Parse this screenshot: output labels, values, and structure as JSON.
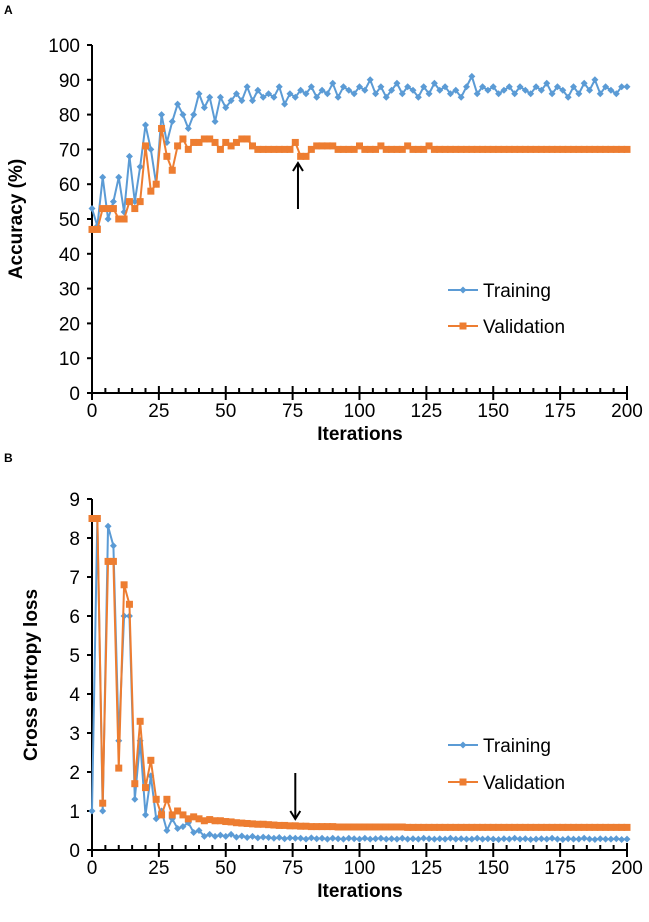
{
  "colors": {
    "training": "#5B9BD5",
    "validation": "#ED7D31"
  },
  "chart_data": [
    {
      "panel_label": "A",
      "type": "line",
      "xlabel": "Iterations",
      "ylabel": "Accuracy (%)",
      "xlim": [
        0,
        200
      ],
      "ylim": [
        0,
        100
      ],
      "xticks": [
        0,
        25,
        50,
        75,
        100,
        125,
        150,
        175,
        200
      ],
      "yticks": [
        0,
        10,
        20,
        30,
        40,
        50,
        60,
        70,
        80,
        90,
        100
      ],
      "x_start": 0,
      "x_step": 2,
      "legend_position": "center-right",
      "annotation": {
        "type": "arrow-up",
        "x": 77
      },
      "series": [
        {
          "name": "Training",
          "marker": "diamond",
          "values": [
            53,
            48,
            62,
            50,
            55,
            62,
            52,
            68,
            55,
            65,
            77,
            70,
            60,
            80,
            72,
            78,
            83,
            80,
            76,
            80,
            86,
            82,
            85,
            78,
            85,
            82,
            84,
            86,
            84,
            88,
            84,
            87,
            85,
            86,
            85,
            88,
            83,
            86,
            85,
            87,
            86,
            88,
            85,
            87,
            86,
            89,
            85,
            88,
            87,
            86,
            88,
            87,
            90,
            86,
            88,
            85,
            87,
            89,
            86,
            88,
            87,
            85,
            88,
            86,
            89,
            87,
            88,
            86,
            87,
            85,
            88,
            91,
            86,
            88,
            87,
            88,
            86,
            87,
            88,
            86,
            88,
            87,
            86,
            88,
            87,
            89,
            86,
            88,
            87,
            85,
            88,
            86,
            89,
            87,
            90,
            86,
            88,
            87,
            86,
            88,
            88
          ]
        },
        {
          "name": "Validation",
          "marker": "square",
          "values": [
            47,
            47,
            53,
            53,
            53,
            50,
            50,
            55,
            53,
            55,
            71,
            58,
            60,
            76,
            68,
            64,
            71,
            73,
            70,
            72,
            72,
            73,
            73,
            72,
            70,
            72,
            71,
            72,
            73,
            73,
            71,
            70,
            70,
            70,
            70,
            70,
            70,
            70,
            72,
            68,
            68,
            70,
            71,
            71,
            71,
            71,
            70,
            70,
            70,
            70,
            71,
            70,
            70,
            70,
            71,
            70,
            70,
            70,
            70,
            71,
            70,
            70,
            70,
            71,
            70,
            70,
            70,
            70,
            70,
            70,
            70,
            70,
            70,
            70,
            70,
            70,
            70,
            70,
            70,
            70,
            70,
            70,
            70,
            70,
            70,
            70,
            70,
            70,
            70,
            70,
            70,
            70,
            70,
            70,
            70,
            70,
            70,
            70,
            70,
            70,
            70
          ]
        }
      ]
    },
    {
      "panel_label": "B",
      "type": "line",
      "xlabel": "Iterations",
      "ylabel": "Cross entropy loss",
      "xlim": [
        0,
        200
      ],
      "ylim": [
        0,
        9
      ],
      "xticks": [
        0,
        25,
        50,
        75,
        100,
        125,
        150,
        175,
        200
      ],
      "yticks": [
        0,
        1,
        2,
        3,
        4,
        5,
        6,
        7,
        8,
        9
      ],
      "x_start": 0,
      "x_step": 2,
      "legend_position": "center-right",
      "annotation": {
        "type": "arrow-down",
        "x": 76
      },
      "series": [
        {
          "name": "Training",
          "marker": "diamond",
          "values": [
            1.0,
            8.5,
            1.0,
            8.3,
            7.8,
            2.8,
            6.0,
            6.0,
            1.3,
            2.8,
            0.9,
            1.9,
            0.8,
            1.0,
            0.5,
            0.8,
            0.55,
            0.6,
            0.7,
            0.45,
            0.5,
            0.35,
            0.4,
            0.35,
            0.38,
            0.35,
            0.4,
            0.33,
            0.36,
            0.32,
            0.35,
            0.31,
            0.33,
            0.32,
            0.3,
            0.32,
            0.29,
            0.31,
            0.3,
            0.3,
            0.28,
            0.31,
            0.29,
            0.3,
            0.28,
            0.3,
            0.29,
            0.28,
            0.3,
            0.29,
            0.28,
            0.3,
            0.28,
            0.29,
            0.3,
            0.28,
            0.29,
            0.28,
            0.3,
            0.28,
            0.29,
            0.28,
            0.3,
            0.29,
            0.28,
            0.29,
            0.28,
            0.3,
            0.28,
            0.29,
            0.28,
            0.28,
            0.3,
            0.28,
            0.29,
            0.28,
            0.27,
            0.29,
            0.28,
            0.3,
            0.28,
            0.29,
            0.27,
            0.28,
            0.29,
            0.28,
            0.3,
            0.28,
            0.27,
            0.29,
            0.28,
            0.28,
            0.3,
            0.28,
            0.27,
            0.29,
            0.28,
            0.28,
            0.29,
            0.27,
            0.28
          ]
        },
        {
          "name": "Validation",
          "marker": "square",
          "values": [
            8.5,
            8.5,
            1.2,
            7.4,
            7.4,
            2.1,
            6.8,
            6.3,
            1.7,
            3.3,
            1.6,
            2.3,
            1.3,
            0.9,
            1.3,
            0.9,
            1.0,
            0.9,
            0.8,
            0.85,
            0.8,
            0.75,
            0.78,
            0.75,
            0.75,
            0.73,
            0.72,
            0.7,
            0.69,
            0.68,
            0.67,
            0.66,
            0.66,
            0.65,
            0.64,
            0.63,
            0.63,
            0.62,
            0.62,
            0.61,
            0.61,
            0.6,
            0.6,
            0.6,
            0.6,
            0.6,
            0.59,
            0.59,
            0.59,
            0.59,
            0.59,
            0.59,
            0.59,
            0.59,
            0.59,
            0.59,
            0.59,
            0.59,
            0.59,
            0.58,
            0.58,
            0.58,
            0.58,
            0.58,
            0.58,
            0.58,
            0.58,
            0.58,
            0.58,
            0.58,
            0.58,
            0.58,
            0.58,
            0.58,
            0.58,
            0.58,
            0.58,
            0.58,
            0.58,
            0.58,
            0.58,
            0.58,
            0.58,
            0.58,
            0.58,
            0.58,
            0.58,
            0.58,
            0.58,
            0.58,
            0.58,
            0.58,
            0.58,
            0.58,
            0.58,
            0.58,
            0.58,
            0.58,
            0.58,
            0.58,
            0.58
          ]
        }
      ]
    }
  ]
}
